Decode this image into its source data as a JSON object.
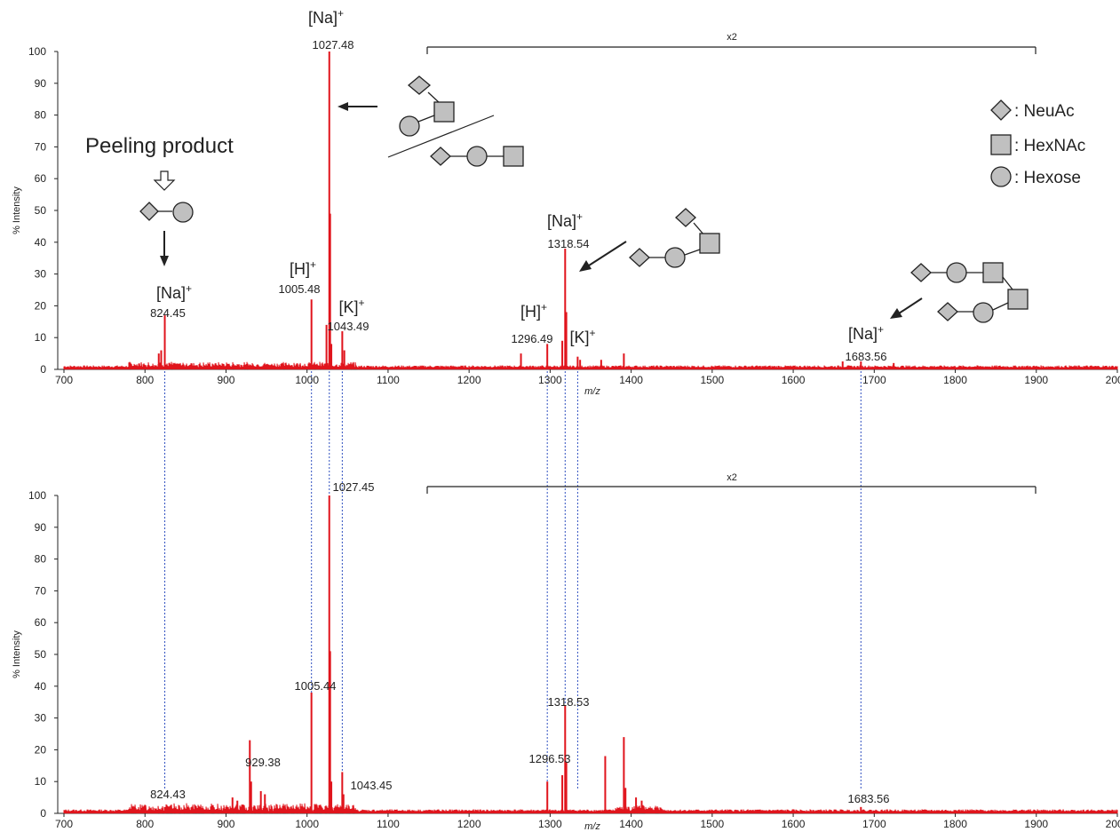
{
  "colors": {
    "spectrum": "#e0141c",
    "guide": "#3050c0",
    "axis": "#222222"
  },
  "chart_data": [
    {
      "type": "line",
      "panel": "top",
      "xlabel": "m/z",
      "ylabel": "% Intensity",
      "xlim": [
        700,
        2000
      ],
      "ylim": [
        0,
        100
      ],
      "xticks": [
        "700",
        "800",
        "900",
        "1000",
        "1100",
        "1200",
        "1300",
        "1400",
        "1500",
        "1600",
        "1700",
        "1800",
        "1900",
        "2000"
      ],
      "yticks": [
        "0",
        "10",
        "20",
        "30",
        "40",
        "50",
        "60",
        "70",
        "80",
        "90",
        "100"
      ],
      "scale_bar": {
        "label": "x2",
        "from": 1143,
        "to": 1900
      },
      "peaks": [
        {
          "x": 817,
          "y": 5
        },
        {
          "x": 820,
          "y": 6
        },
        {
          "x": 824.45,
          "y": 17
        },
        {
          "x": 1005.48,
          "y": 22
        },
        {
          "x": 1024,
          "y": 14
        },
        {
          "x": 1027.48,
          "y": 100
        },
        {
          "x": 1028.5,
          "y": 49
        },
        {
          "x": 1030,
          "y": 8
        },
        {
          "x": 1043.49,
          "y": 12
        },
        {
          "x": 1046,
          "y": 6
        },
        {
          "x": 1264,
          "y": 5
        },
        {
          "x": 1296.49,
          "y": 8
        },
        {
          "x": 1315,
          "y": 9
        },
        {
          "x": 1318.54,
          "y": 38
        },
        {
          "x": 1320,
          "y": 18
        },
        {
          "x": 1334,
          "y": 4
        },
        {
          "x": 1337,
          "y": 3
        },
        {
          "x": 1363,
          "y": 3
        },
        {
          "x": 1391,
          "y": 5
        },
        {
          "x": 1661,
          "y": 2.5
        },
        {
          "x": 1683.56,
          "y": 2.5
        },
        {
          "x": 1724,
          "y": 2
        }
      ],
      "peak_labels": [
        {
          "mz": "824.45",
          "ion": "[Na]+",
          "x": 824.45
        },
        {
          "mz": "1005.48",
          "ion": "[H]+",
          "x": 1005.48
        },
        {
          "mz": "1027.48",
          "ion": "[Na]+",
          "x": 1027.48
        },
        {
          "mz": "1043.49",
          "ion": "[K]+",
          "x": 1043.49
        },
        {
          "mz": "1296.49",
          "ion": "[H]+",
          "x": 1296.49
        },
        {
          "mz": "1318.54",
          "ion": "[Na]+",
          "x": 1318.54
        },
        {
          "mz": "",
          "ion": "[K]+",
          "x": 1334
        },
        {
          "mz": "1683.56",
          "ion": "[Na]+",
          "x": 1683.56
        }
      ]
    },
    {
      "type": "line",
      "panel": "bottom",
      "xlabel": "m/z",
      "ylabel": "% Intensity",
      "xlim": [
        700,
        2000
      ],
      "ylim": [
        0,
        100
      ],
      "xticks": [
        "700",
        "800",
        "900",
        "1000",
        "1100",
        "1200",
        "1300",
        "1400",
        "1500",
        "1600",
        "1700",
        "1800",
        "1900",
        "2000"
      ],
      "yticks": [
        "0",
        "10",
        "20",
        "30",
        "40",
        "50",
        "60",
        "70",
        "80",
        "90",
        "100"
      ],
      "scale_bar": {
        "label": "x2",
        "from": 1143,
        "to": 1900
      },
      "peaks": [
        {
          "x": 824.43,
          "y": 2
        },
        {
          "x": 908,
          "y": 5
        },
        {
          "x": 914,
          "y": 4
        },
        {
          "x": 929.38,
          "y": 23
        },
        {
          "x": 931,
          "y": 10
        },
        {
          "x": 943,
          "y": 7
        },
        {
          "x": 948,
          "y": 6
        },
        {
          "x": 1005.44,
          "y": 38
        },
        {
          "x": 1027.45,
          "y": 100
        },
        {
          "x": 1028.5,
          "y": 51
        },
        {
          "x": 1030,
          "y": 10
        },
        {
          "x": 1043.45,
          "y": 13
        },
        {
          "x": 1045,
          "y": 6
        },
        {
          "x": 1296.53,
          "y": 10
        },
        {
          "x": 1315,
          "y": 12
        },
        {
          "x": 1318.53,
          "y": 34
        },
        {
          "x": 1320,
          "y": 16
        },
        {
          "x": 1368,
          "y": 18
        },
        {
          "x": 1391,
          "y": 24
        },
        {
          "x": 1393,
          "y": 8
        },
        {
          "x": 1406,
          "y": 5
        },
        {
          "x": 1413,
          "y": 4
        },
        {
          "x": 1683.56,
          "y": 2
        }
      ],
      "peak_labels": [
        {
          "mz": "824.43",
          "x": 824.43
        },
        {
          "mz": "929.38",
          "x": 929.38
        },
        {
          "mz": "1005.44",
          "x": 1005.44
        },
        {
          "mz": "1027.45",
          "x": 1027.45
        },
        {
          "mz": "1043.45",
          "x": 1043.45
        },
        {
          "mz": "1296.53",
          "x": 1296.53
        },
        {
          "mz": "1318.53",
          "x": 1318.53
        },
        {
          "mz": "1683.56",
          "x": 1683.56
        }
      ]
    }
  ],
  "guide_lines_mz": [
    824.45,
    1005.48,
    1027.48,
    1043.49,
    1296.49,
    1318.54,
    1334,
    1683.56
  ],
  "annotations": {
    "peeling_label": "Peeling product",
    "legend": [
      {
        "shape": "diamond-icon",
        "label": ": NeuAc"
      },
      {
        "shape": "square-icon",
        "label": ": HexNAc"
      },
      {
        "shape": "circle-icon",
        "label": ": Hexose"
      }
    ]
  }
}
